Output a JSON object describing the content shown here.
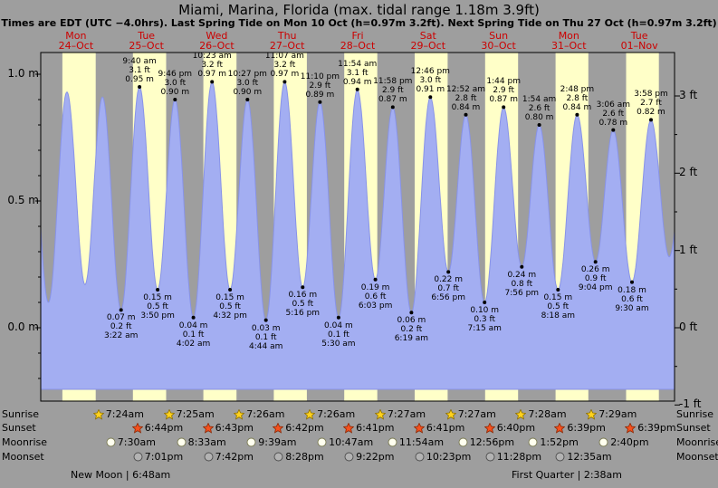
{
  "header": {
    "title": "Miami, Marina, Florida (max. tidal range 1.18m 3.9ft)",
    "subtitle": "Times are EDT (UTC −4.0hrs). Last Spring Tide on Mon 10 Oct (h=0.97m 3.2ft). Next Spring Tide on Thu 27 Oct (h=0.97m 3.2ft)"
  },
  "colors": {
    "background": "#9e9e9e",
    "day_band": "#ffffc8",
    "night_band": "#9e9e9e",
    "tide_fill": "#a3aef2",
    "tide_stroke": "#8893e8",
    "day_label_red": "#cc0000",
    "axis_black": "#000000"
  },
  "days": [
    {
      "weekday": "Mon",
      "date": "24–Oct"
    },
    {
      "weekday": "Tue",
      "date": "25–Oct"
    },
    {
      "weekday": "Wed",
      "date": "26–Oct"
    },
    {
      "weekday": "Thu",
      "date": "27–Oct"
    },
    {
      "weekday": "Fri",
      "date": "28–Oct"
    },
    {
      "weekday": "Sat",
      "date": "29–Oct"
    },
    {
      "weekday": "Sun",
      "date": "30–Oct"
    },
    {
      "weekday": "Mon",
      "date": "31–Oct"
    },
    {
      "weekday": "Tue",
      "date": "01–Nov"
    }
  ],
  "axes": {
    "left_ticks": [
      {
        "label": "1.0 m",
        "value": 1.0
      },
      {
        "label": "0.5 m",
        "value": 0.5
      },
      {
        "label": "0.0 m",
        "value": 0.0
      }
    ],
    "right_ticks": [
      {
        "label": "3 ft",
        "feet": 3
      },
      {
        "label": "2 ft",
        "feet": 2
      },
      {
        "label": "1 ft",
        "feet": 1
      },
      {
        "label": "0 ft",
        "feet": 0
      },
      {
        "label": "-1 ft",
        "feet": -1
      }
    ]
  },
  "chart_data": {
    "type": "area",
    "title": "Miami, Marina, Florida tide curve",
    "x_axis": {
      "start_day": "Mon 24-Oct",
      "end_day": "Tue 01-Nov",
      "unit": "hours from 24-Oct 00:00",
      "range_hours": [
        0,
        216
      ]
    },
    "y_axis_left_unit": "m",
    "y_axis_right_unit": "ft",
    "ylim_m": [
      -0.3,
      1.09
    ],
    "max_tidal_range": "1.18m 3.9ft",
    "daylight_bands": [
      [
        7.383,
        18.75
      ],
      [
        7.4,
        18.733
      ],
      [
        7.417,
        18.717
      ],
      [
        7.433,
        18.7
      ],
      [
        7.433,
        18.683
      ],
      [
        7.45,
        18.683
      ],
      [
        7.45,
        18.667
      ],
      [
        7.467,
        18.65
      ],
      [
        7.483,
        18.65
      ]
    ],
    "tide_events": [
      {
        "t": -3.8,
        "type": "high",
        "m": 0.91,
        "annotated": false
      },
      {
        "t": 2.63,
        "type": "low",
        "m": 0.1,
        "annotated": false
      },
      {
        "t": 8.92,
        "type": "high",
        "m": 0.93,
        "annotated": false
      },
      {
        "t": 15.1,
        "type": "low",
        "m": 0.17,
        "annotated": false
      },
      {
        "t": 21.03,
        "type": "high",
        "m": 0.91,
        "annotated": false
      },
      {
        "t": 27.37,
        "type": "low",
        "m": 0.07,
        "annotated": true,
        "lines": [
          "0.07 m",
          "0.2 ft",
          "3:22 am"
        ]
      },
      {
        "t": 33.67,
        "type": "high",
        "m": 0.95,
        "annotated": true,
        "lines": [
          "9:40 am",
          "3.1 ft",
          "0.95 m"
        ]
      },
      {
        "t": 39.83,
        "type": "low",
        "m": 0.15,
        "annotated": true,
        "lines": [
          "0.15 m",
          "0.5 ft",
          "3:50 pm"
        ]
      },
      {
        "t": 45.77,
        "type": "high",
        "m": 0.9,
        "annotated": true,
        "lines": [
          "9:46 pm",
          "3.0 ft",
          "0.90 m"
        ]
      },
      {
        "t": 52.03,
        "type": "low",
        "m": 0.04,
        "annotated": true,
        "lines": [
          "0.04 m",
          "0.1 ft",
          "4:02 am"
        ]
      },
      {
        "t": 58.38,
        "type": "high",
        "m": 0.97,
        "annotated": true,
        "lines": [
          "10:23 am",
          "3.2 ft",
          "0.97 m"
        ]
      },
      {
        "t": 64.53,
        "type": "low",
        "m": 0.15,
        "annotated": true,
        "lines": [
          "0.15 m",
          "0.5 ft",
          "4:32 pm"
        ]
      },
      {
        "t": 70.45,
        "type": "high",
        "m": 0.9,
        "annotated": true,
        "lines": [
          "10:27 pm",
          "3.0 ft",
          "0.90 m"
        ]
      },
      {
        "t": 76.73,
        "type": "low",
        "m": 0.03,
        "annotated": true,
        "lines": [
          "0.03 m",
          "0.1 ft",
          "4:44 am"
        ]
      },
      {
        "t": 83.12,
        "type": "high",
        "m": 0.97,
        "annotated": true,
        "lines": [
          "11:07 am",
          "3.2 ft",
          "0.97 m"
        ]
      },
      {
        "t": 89.27,
        "type": "low",
        "m": 0.16,
        "annotated": true,
        "lines": [
          "0.16 m",
          "0.5 ft",
          "5:16 pm"
        ]
      },
      {
        "t": 95.17,
        "type": "high",
        "m": 0.89,
        "annotated": true,
        "lines": [
          "11:10 pm",
          "2.9 ft",
          "0.89 m"
        ]
      },
      {
        "t": 101.5,
        "type": "low",
        "m": 0.04,
        "annotated": true,
        "lines": [
          "0.04 m",
          "0.1 ft",
          "5:30 am"
        ]
      },
      {
        "t": 107.9,
        "type": "high",
        "m": 0.94,
        "annotated": true,
        "lines": [
          "11:54 am",
          "3.1 ft",
          "0.94 m"
        ]
      },
      {
        "t": 114.05,
        "type": "low",
        "m": 0.19,
        "annotated": true,
        "lines": [
          "0.19 m",
          "0.6 ft",
          "6:03 pm"
        ]
      },
      {
        "t": 119.97,
        "type": "high",
        "m": 0.87,
        "annotated": true,
        "lines": [
          "11:58 pm",
          "2.9 ft",
          "0.87 m"
        ]
      },
      {
        "t": 126.32,
        "type": "low",
        "m": 0.06,
        "annotated": true,
        "lines": [
          "0.06 m",
          "0.2 ft",
          "6:19 am"
        ]
      },
      {
        "t": 132.77,
        "type": "high",
        "m": 0.91,
        "annotated": true,
        "lines": [
          "12:46 pm",
          "3.0 ft",
          "0.91 m"
        ]
      },
      {
        "t": 138.93,
        "type": "low",
        "m": 0.22,
        "annotated": true,
        "lines": [
          "0.22 m",
          "0.7 ft",
          "6:56 pm"
        ]
      },
      {
        "t": 144.87,
        "type": "high",
        "m": 0.84,
        "annotated": true,
        "lines": [
          "12:52 am",
          "2.8 ft",
          "0.84 m"
        ]
      },
      {
        "t": 151.25,
        "type": "low",
        "m": 0.1,
        "annotated": true,
        "lines": [
          "0.10 m",
          "0.3 ft",
          "7:15 am"
        ]
      },
      {
        "t": 157.73,
        "type": "high",
        "m": 0.87,
        "annotated": true,
        "lines": [
          "1:44 pm",
          "2.9 ft",
          "0.87 m"
        ]
      },
      {
        "t": 163.93,
        "type": "low",
        "m": 0.24,
        "annotated": true,
        "lines": [
          "0.24 m",
          "0.8 ft",
          "7:56 pm"
        ]
      },
      {
        "t": 169.9,
        "type": "high",
        "m": 0.8,
        "annotated": true,
        "lines": [
          "1:54 am",
          "2.6 ft",
          "0.80 m"
        ]
      },
      {
        "t": 176.3,
        "type": "low",
        "m": 0.15,
        "annotated": true,
        "lines": [
          "0.15 m",
          "0.5 ft",
          "8:18 am"
        ]
      },
      {
        "t": 182.8,
        "type": "high",
        "m": 0.84,
        "annotated": true,
        "lines": [
          "2:48 pm",
          "2.8 ft",
          "0.84 m"
        ]
      },
      {
        "t": 189.07,
        "type": "low",
        "m": 0.26,
        "annotated": true,
        "lines": [
          "0.26 m",
          "0.9 ft",
          "9:04 pm"
        ]
      },
      {
        "t": 195.1,
        "type": "high",
        "m": 0.78,
        "annotated": true,
        "lines": [
          "3:06 am",
          "2.6 ft",
          "0.78 m"
        ]
      },
      {
        "t": 201.5,
        "type": "low",
        "m": 0.18,
        "annotated": true,
        "lines": [
          "0.18 m",
          "0.6 ft",
          "9:30 am"
        ]
      },
      {
        "t": 207.97,
        "type": "high",
        "m": 0.82,
        "annotated": true,
        "lines": [
          "3:58 pm",
          "2.7 ft",
          "0.82 m"
        ]
      },
      {
        "t": 214.2,
        "type": "low",
        "m": 0.28,
        "annotated": false
      },
      {
        "t": 220.3,
        "type": "high",
        "m": 0.78,
        "annotated": false
      }
    ]
  },
  "astro": {
    "rows": [
      {
        "label": "Sunrise",
        "icon": "sunrise-star-icon",
        "shape": "star",
        "fill": "#ffd21e",
        "stroke": "#8a6d00",
        "entries": [
          "7:24am",
          "7:25am",
          "7:26am",
          "7:26am",
          "7:27am",
          "7:27am",
          "7:28am",
          "7:29am"
        ]
      },
      {
        "label": "Sunset",
        "icon": "sunset-star-icon",
        "shape": "star",
        "fill": "#f4511e",
        "stroke": "#8a2500",
        "entries": [
          "6:44pm",
          "6:43pm",
          "6:42pm",
          "6:41pm",
          "6:41pm",
          "6:40pm",
          "6:39pm",
          "6:39pm"
        ]
      },
      {
        "label": "Moonrise",
        "icon": "moonrise-icon",
        "shape": "circle",
        "fill": "#fffff0",
        "stroke": "#7a7a52",
        "entries": [
          "7:30am",
          "8:33am",
          "9:39am",
          "10:47am",
          "11:54am",
          "12:56pm",
          "1:52pm",
          "2:40pm"
        ]
      },
      {
        "label": "Moonset",
        "icon": "moonset-icon",
        "shape": "circle",
        "fill": "#b3b3b3",
        "stroke": "#4d4d4d",
        "entries": [
          "7:01pm",
          "7:42pm",
          "8:28pm",
          "9:22pm",
          "10:23pm",
          "11:28pm",
          "12:35am"
        ]
      }
    ],
    "moon_phases": [
      {
        "label": "New Moon | 6:48am"
      },
      {
        "label": "First Quarter | 2:38am"
      }
    ]
  }
}
